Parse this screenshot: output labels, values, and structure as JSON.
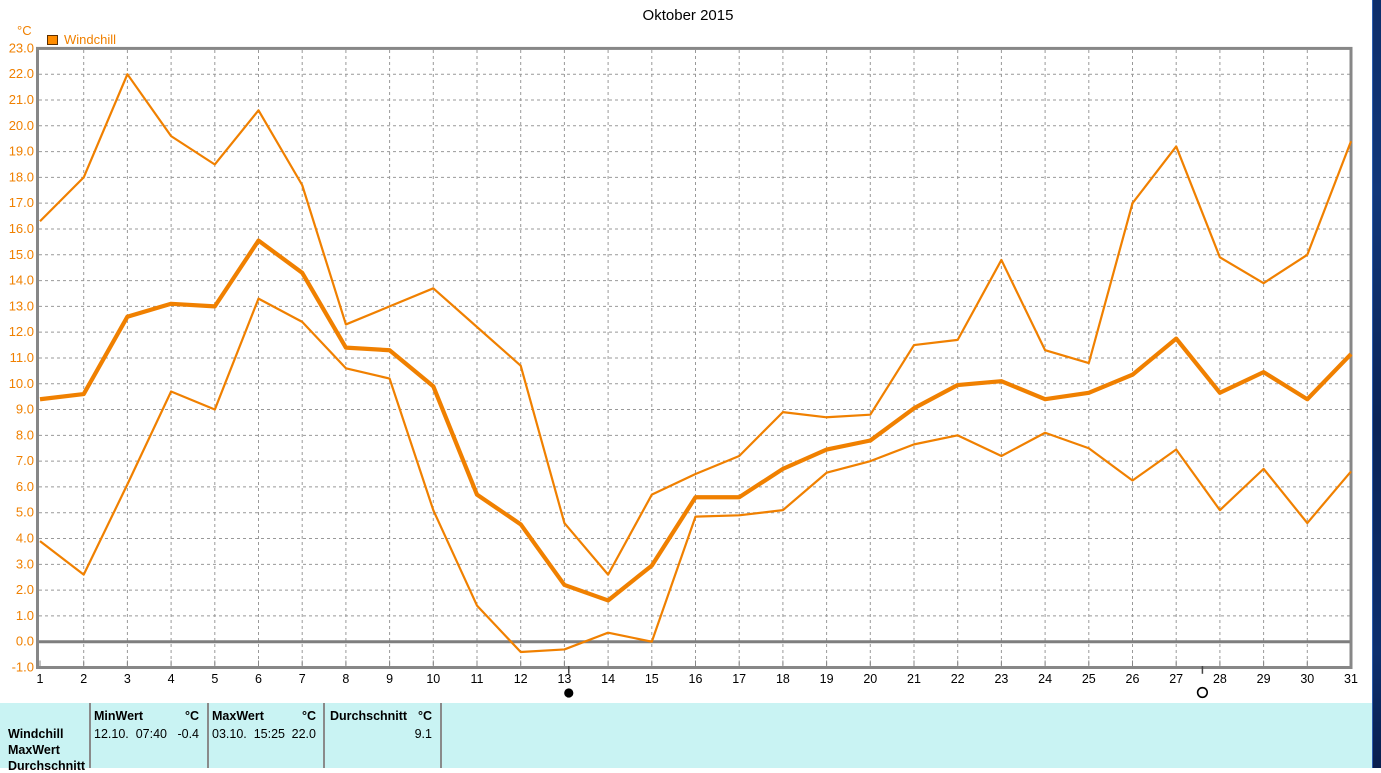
{
  "title": "Oktober 2015",
  "axis_unit": "°C",
  "legend": {
    "label": "Windchill",
    "color": "#f08000"
  },
  "chart_data": {
    "type": "line",
    "title": "Oktober 2015",
    "ylabel": "°C",
    "ylim": [
      -1.0,
      23.0
    ],
    "ytick_step": 1.0,
    "grid": true,
    "zero_line": true,
    "line_color": "#f08000",
    "x": [
      1,
      2,
      3,
      4,
      5,
      6,
      7,
      8,
      9,
      10,
      11,
      12,
      13,
      14,
      15,
      16,
      17,
      18,
      19,
      20,
      21,
      22,
      23,
      24,
      25,
      26,
      27,
      28,
      29,
      30,
      31
    ],
    "series": [
      {
        "name": "max",
        "width": "thin",
        "values": [
          16.3,
          18.0,
          22.0,
          19.6,
          18.5,
          20.6,
          17.7,
          12.3,
          13.0,
          13.7,
          12.2,
          10.7,
          4.6,
          2.6,
          5.7,
          6.5,
          7.2,
          8.9,
          8.7,
          8.8,
          11.5,
          11.7,
          14.8,
          11.3,
          10.8,
          17.0,
          19.2,
          14.9,
          13.9,
          15.0,
          19.4
        ]
      },
      {
        "name": "mean",
        "width": "thick",
        "values": [
          9.4,
          9.6,
          12.6,
          13.1,
          13.0,
          15.55,
          14.3,
          11.4,
          11.3,
          9.9,
          5.7,
          4.55,
          2.2,
          1.6,
          2.95,
          5.6,
          5.6,
          6.7,
          7.45,
          7.8,
          9.05,
          9.95,
          10.1,
          9.4,
          9.65,
          10.35,
          11.75,
          9.65,
          10.45,
          9.4,
          11.15
        ]
      },
      {
        "name": "min",
        "width": "thin",
        "values": [
          3.9,
          2.6,
          6.1,
          9.7,
          9.0,
          13.3,
          12.4,
          10.6,
          10.2,
          5.1,
          1.4,
          -0.4,
          -0.3,
          0.35,
          0.0,
          4.85,
          4.9,
          5.1,
          6.55,
          7.0,
          7.65,
          8.0,
          7.2,
          8.1,
          7.5,
          6.25,
          7.45,
          5.1,
          6.7,
          4.6,
          6.6
        ]
      }
    ],
    "moon_markers": [
      {
        "day": 13.1,
        "phase": "new-moon"
      },
      {
        "day": 27.6,
        "phase": "full-moon"
      }
    ]
  },
  "table": {
    "row_labels": [
      "Windchill",
      "MaxWert",
      "Durchschnitt"
    ],
    "columns": [
      {
        "header": "MinWert",
        "unit": "°C",
        "datetime": "12.10.  07:40",
        "value": "-0.4"
      },
      {
        "header": "MaxWert",
        "unit": "°C",
        "datetime": "03.10.  15:25",
        "value": "22.0"
      },
      {
        "header": "Durchschnitt",
        "unit": "°C",
        "datetime": "",
        "value": "9.1"
      }
    ]
  }
}
